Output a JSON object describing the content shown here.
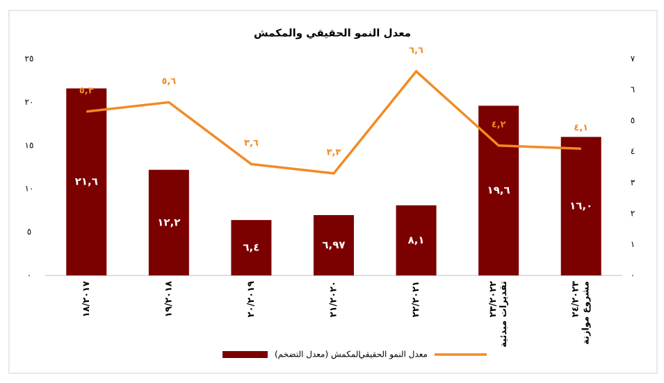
{
  "chart_data": {
    "type": "bar",
    "title": "معدل النمو الحقيقي والمكمش",
    "categories": [
      [
        "١٨/٢٠١٧"
      ],
      [
        "١٩/٢٠١٨"
      ],
      [
        "٢٠/٢٠١٩"
      ],
      [
        "٢١/٢٠٢٠"
      ],
      [
        "٢٢/٢٠٢١"
      ],
      [
        "٢٣/٢٠٢٢",
        "تقديرات مبدئية"
      ],
      [
        "٢٤/٢٠٢٣",
        "مشروع موازنة"
      ]
    ],
    "series": [
      {
        "name": "المكمش (معدل التضخم)",
        "color": "#7b0000",
        "values": [
          21.6,
          12.2,
          6.4,
          6.97,
          8.1,
          19.6,
          16.0
        ],
        "value_labels": [
          "٢١,٦",
          "١٢,٢",
          "٦,٤",
          "٦,٩٧",
          "٨,١",
          "١٩,٦",
          "١٦,٠"
        ]
      },
      {
        "name": "معدل النمو الحقيقي",
        "type": "line",
        "axis": "y2",
        "color": "#f28a24",
        "values": [
          5.3,
          5.6,
          3.6,
          3.3,
          6.6,
          4.2,
          4.1
        ],
        "value_labels": [
          "٥,٣",
          "٥,٦",
          "٣,٦",
          "٣,٣",
          "٦,٦",
          "٤,٢",
          "٤,١"
        ]
      }
    ],
    "ylim": [
      0,
      25
    ],
    "yticks": [
      {
        "value": 0,
        "label": "٠"
      },
      {
        "value": 5,
        "label": "٥"
      },
      {
        "value": 10,
        "label": "١٠"
      },
      {
        "value": 15,
        "label": "١٥"
      },
      {
        "value": 20,
        "label": "٢٠"
      },
      {
        "value": 25,
        "label": "٢٥"
      }
    ],
    "y2lim": [
      0,
      7
    ],
    "y2ticks": [
      {
        "value": 0,
        "label": "٠"
      },
      {
        "value": 1,
        "label": "١"
      },
      {
        "value": 2,
        "label": "٢"
      },
      {
        "value": 3,
        "label": "٣"
      },
      {
        "value": 4,
        "label": "٤"
      },
      {
        "value": 5,
        "label": "٥"
      },
      {
        "value": 6,
        "label": "٦"
      },
      {
        "value": 7,
        "label": "٧"
      }
    ],
    "legend": "bottom"
  }
}
